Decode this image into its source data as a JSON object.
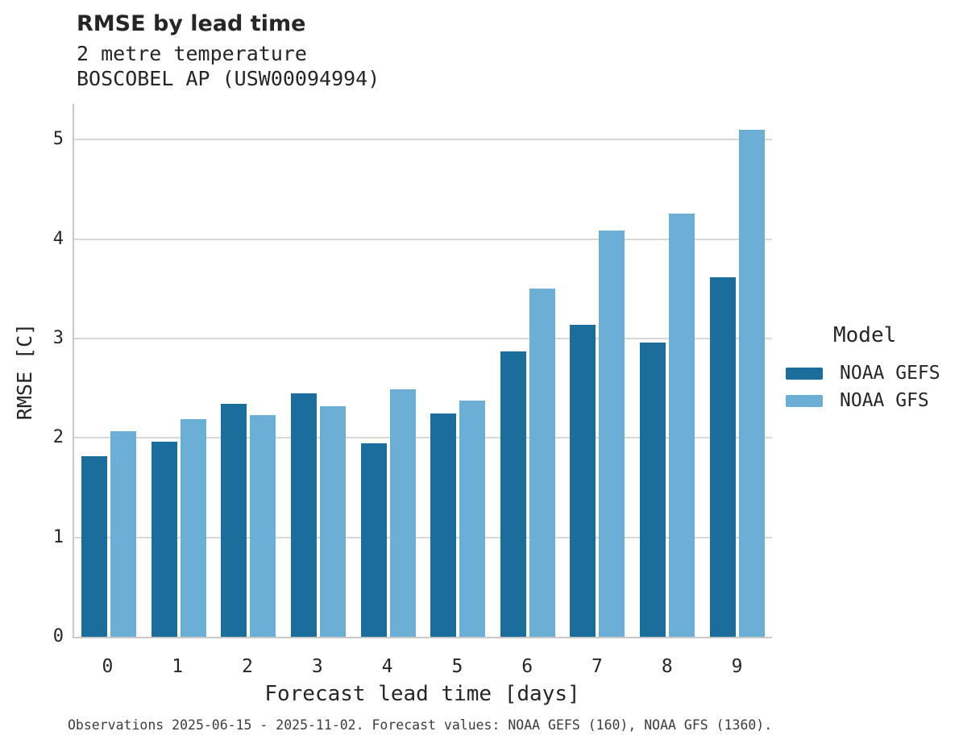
{
  "chart_data": {
    "type": "bar",
    "title": "RMSE by lead time",
    "subtitle": [
      "2 metre temperature",
      "BOSCOBEL AP (USW00094994)"
    ],
    "xlabel": "Forecast lead time [days]",
    "ylabel": "RMSE [C]",
    "categories": [
      "0",
      "1",
      "2",
      "3",
      "4",
      "5",
      "6",
      "7",
      "8",
      "9"
    ],
    "series": [
      {
        "name": "NOAA GEFS",
        "color": "#1b6d9b",
        "values": [
          1.82,
          1.96,
          2.34,
          2.45,
          1.95,
          2.25,
          2.87,
          3.14,
          2.96,
          3.62
        ]
      },
      {
        "name": "NOAA GFS",
        "color": "#6bafd6",
        "values": [
          2.07,
          2.19,
          2.23,
          2.32,
          2.49,
          2.38,
          3.5,
          4.09,
          4.26,
          5.1
        ]
      }
    ],
    "yticks": [
      0,
      1,
      2,
      3,
      4,
      5
    ],
    "ylim": [
      0,
      5.36
    ],
    "grid": "horizontal",
    "legend_title": "Model",
    "legend_position": "right"
  },
  "caption": "Observations 2025-06-15 - 2025-11-02. Forecast values: NOAA GEFS (160), NOAA GFS (1360).",
  "colors": {
    "gefs_bar": "#1b6d9b",
    "gfs_bar": "#6bafd6",
    "gridline": "#d8d8d8",
    "spine": "#c9c9c9",
    "text": "#262626",
    "caption_text": "#3d3d3d",
    "background": "#ffffff"
  }
}
